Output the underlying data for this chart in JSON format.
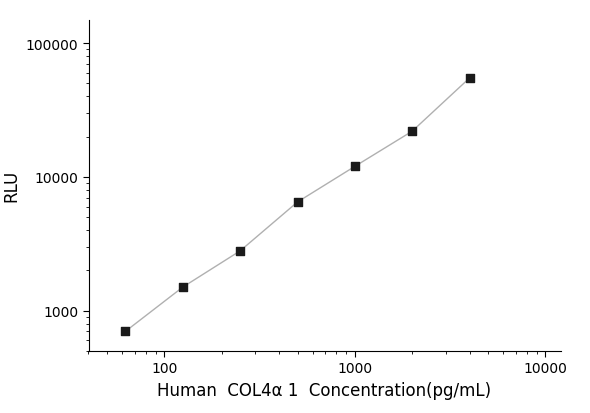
{
  "x_values": [
    62.5,
    125,
    250,
    500,
    1000,
    2000,
    4000
  ],
  "y_values": [
    700,
    1500,
    2800,
    6500,
    12000,
    22000,
    55000
  ],
  "x_label": "Human  COL4α 1  Concentration(pg/mL)",
  "y_label": "RLU",
  "xlim": [
    40,
    12000
  ],
  "ylim": [
    500,
    150000
  ],
  "x_ticks": [
    100,
    1000,
    10000
  ],
  "y_ticks": [
    1000,
    10000,
    100000
  ],
  "line_color": "#b0b0b0",
  "marker_color": "#1a1a1a",
  "background_color": "#ffffff",
  "marker_size": 6,
  "line_width": 1.0,
  "x_label_fontsize": 12,
  "y_label_fontsize": 12,
  "tick_fontsize": 10
}
